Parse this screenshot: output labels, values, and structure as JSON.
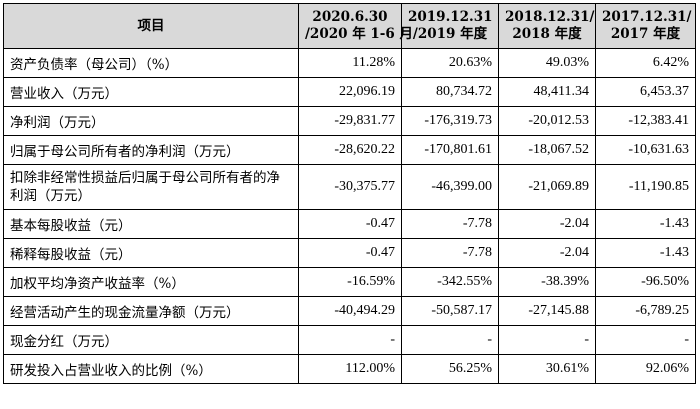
{
  "table": {
    "header": {
      "item": "项目",
      "periods": [
        {
          "line1": "2020.6.30",
          "line2": "/2020 年 1-6 月"
        },
        {
          "line1": "2019.12.31",
          "line2": "/2019 年度"
        },
        {
          "line1": "2018.12.31/",
          "line2": "2018 年度"
        },
        {
          "line1": "2017.12.31/",
          "line2": "2017 年度"
        }
      ]
    },
    "rows": [
      {
        "label": "资产负债率（母公司）（%）",
        "values": [
          "11.28%",
          "20.63%",
          "49.03%",
          "6.42%"
        ]
      },
      {
        "label": "营业收入（万元）",
        "values": [
          "22,096.19",
          "80,734.72",
          "48,411.34",
          "6,453.37"
        ]
      },
      {
        "label": "净利润（万元）",
        "values": [
          "-29,831.77",
          "-176,319.73",
          "-20,012.53",
          "-12,383.41"
        ]
      },
      {
        "label": "归属于母公司所有者的净利润（万元）",
        "values": [
          "-28,620.22",
          "-170,801.61",
          "-18,067.52",
          "-10,631.63"
        ]
      },
      {
        "label": "扣除非经常性损益后归属于母公司所有者的净利润（万元）",
        "values": [
          "-30,375.77",
          "-46,399.00",
          "-21,069.89",
          "-11,190.85"
        ]
      },
      {
        "label": "基本每股收益（元）",
        "values": [
          "-0.47",
          "-7.78",
          "-2.04",
          "-1.43"
        ]
      },
      {
        "label": "稀释每股收益（元）",
        "values": [
          "-0.47",
          "-7.78",
          "-2.04",
          "-1.43"
        ]
      },
      {
        "label": "加权平均净资产收益率（%）",
        "values": [
          "-16.59%",
          "-342.55%",
          "-38.39%",
          "-96.50%"
        ]
      },
      {
        "label": "经营活动产生的现金流量净额（万元）",
        "values": [
          "-40,494.29",
          "-50,587.17",
          "-27,145.88",
          "-6,789.25"
        ]
      },
      {
        "label": "现金分红（万元）",
        "values": [
          "-",
          "-",
          "-",
          "-"
        ]
      },
      {
        "label": "研发投入占营业收入的比例（%）",
        "values": [
          "112.00%",
          "56.25%",
          "30.61%",
          "92.06%"
        ]
      }
    ]
  }
}
